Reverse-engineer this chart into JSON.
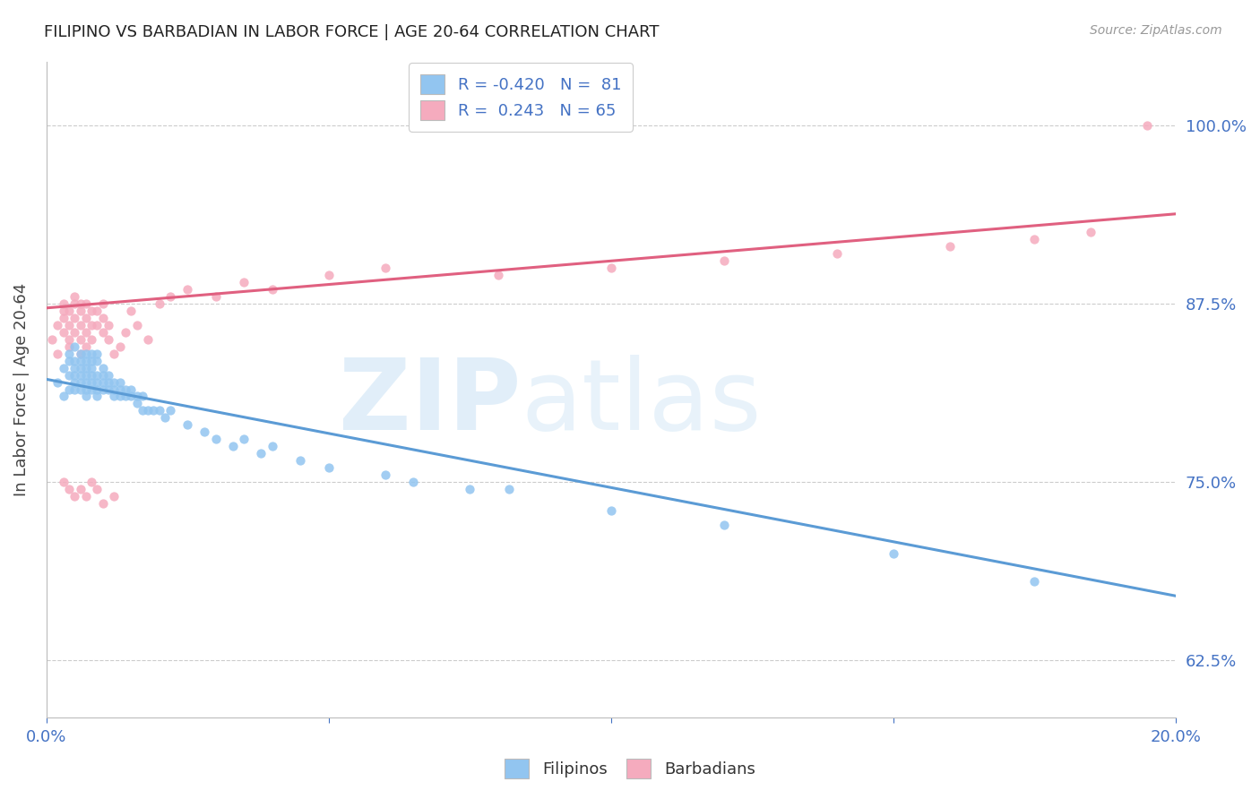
{
  "title": "FILIPINO VS BARBADIAN IN LABOR FORCE | AGE 20-64 CORRELATION CHART",
  "source": "Source: ZipAtlas.com",
  "ylabel": "In Labor Force | Age 20-64",
  "yticks": [
    0.625,
    0.75,
    0.875,
    1.0
  ],
  "ytick_labels": [
    "62.5%",
    "75.0%",
    "87.5%",
    "100.0%"
  ],
  "xlim": [
    0.0,
    0.2
  ],
  "ylim": [
    0.585,
    1.045
  ],
  "blue_color": "#92C5F0",
  "pink_color": "#F5ABBE",
  "blue_line_color": "#5B9BD5",
  "pink_line_color": "#E06080",
  "legend_blue_label": "R = -0.420   N =  81",
  "legend_pink_label": "R =  0.243   N = 65",
  "axis_color": "#4472C4",
  "blue_line_x0": 0.0,
  "blue_line_y0": 0.822,
  "blue_line_x1": 0.2,
  "blue_line_y1": 0.67,
  "pink_line_x0": 0.0,
  "pink_line_y0": 0.872,
  "pink_line_x1": 0.2,
  "pink_line_y1": 0.938,
  "blue_scatter_x": [
    0.002,
    0.003,
    0.003,
    0.004,
    0.004,
    0.004,
    0.004,
    0.005,
    0.005,
    0.005,
    0.005,
    0.005,
    0.005,
    0.006,
    0.006,
    0.006,
    0.006,
    0.006,
    0.006,
    0.007,
    0.007,
    0.007,
    0.007,
    0.007,
    0.007,
    0.007,
    0.008,
    0.008,
    0.008,
    0.008,
    0.008,
    0.008,
    0.009,
    0.009,
    0.009,
    0.009,
    0.009,
    0.009,
    0.01,
    0.01,
    0.01,
    0.01,
    0.011,
    0.011,
    0.011,
    0.012,
    0.012,
    0.012,
    0.013,
    0.013,
    0.013,
    0.014,
    0.014,
    0.015,
    0.015,
    0.016,
    0.016,
    0.017,
    0.017,
    0.018,
    0.019,
    0.02,
    0.021,
    0.022,
    0.025,
    0.028,
    0.03,
    0.033,
    0.035,
    0.038,
    0.04,
    0.045,
    0.05,
    0.06,
    0.065,
    0.075,
    0.082,
    0.1,
    0.12,
    0.15,
    0.175
  ],
  "blue_scatter_y": [
    0.82,
    0.81,
    0.83,
    0.825,
    0.815,
    0.835,
    0.84,
    0.82,
    0.815,
    0.825,
    0.835,
    0.845,
    0.83,
    0.82,
    0.825,
    0.815,
    0.83,
    0.84,
    0.835,
    0.82,
    0.815,
    0.83,
    0.825,
    0.835,
    0.84,
    0.81,
    0.82,
    0.825,
    0.815,
    0.83,
    0.84,
    0.835,
    0.82,
    0.825,
    0.815,
    0.81,
    0.835,
    0.84,
    0.82,
    0.825,
    0.815,
    0.83,
    0.82,
    0.815,
    0.825,
    0.81,
    0.82,
    0.815,
    0.81,
    0.82,
    0.815,
    0.81,
    0.815,
    0.81,
    0.815,
    0.805,
    0.81,
    0.8,
    0.81,
    0.8,
    0.8,
    0.8,
    0.795,
    0.8,
    0.79,
    0.785,
    0.78,
    0.775,
    0.78,
    0.77,
    0.775,
    0.765,
    0.76,
    0.755,
    0.75,
    0.745,
    0.745,
    0.73,
    0.72,
    0.7,
    0.68
  ],
  "pink_scatter_x": [
    0.001,
    0.002,
    0.002,
    0.003,
    0.003,
    0.003,
    0.003,
    0.004,
    0.004,
    0.004,
    0.004,
    0.005,
    0.005,
    0.005,
    0.005,
    0.006,
    0.006,
    0.006,
    0.006,
    0.006,
    0.007,
    0.007,
    0.007,
    0.007,
    0.008,
    0.008,
    0.008,
    0.009,
    0.009,
    0.01,
    0.01,
    0.01,
    0.011,
    0.011,
    0.012,
    0.013,
    0.014,
    0.015,
    0.016,
    0.018,
    0.02,
    0.022,
    0.025,
    0.03,
    0.035,
    0.04,
    0.05,
    0.06,
    0.08,
    0.1,
    0.12,
    0.14,
    0.16,
    0.175,
    0.185,
    0.195,
    0.003,
    0.004,
    0.005,
    0.006,
    0.007,
    0.008,
    0.009,
    0.01,
    0.012
  ],
  "pink_scatter_y": [
    0.85,
    0.86,
    0.84,
    0.87,
    0.855,
    0.865,
    0.875,
    0.86,
    0.85,
    0.87,
    0.845,
    0.855,
    0.865,
    0.875,
    0.88,
    0.85,
    0.86,
    0.87,
    0.84,
    0.875,
    0.855,
    0.865,
    0.875,
    0.845,
    0.86,
    0.87,
    0.85,
    0.86,
    0.87,
    0.855,
    0.865,
    0.875,
    0.85,
    0.86,
    0.84,
    0.845,
    0.855,
    0.87,
    0.86,
    0.85,
    0.875,
    0.88,
    0.885,
    0.88,
    0.89,
    0.885,
    0.895,
    0.9,
    0.895,
    0.9,
    0.905,
    0.91,
    0.915,
    0.92,
    0.925,
    1.0,
    0.75,
    0.745,
    0.74,
    0.745,
    0.74,
    0.75,
    0.745,
    0.735,
    0.74
  ]
}
